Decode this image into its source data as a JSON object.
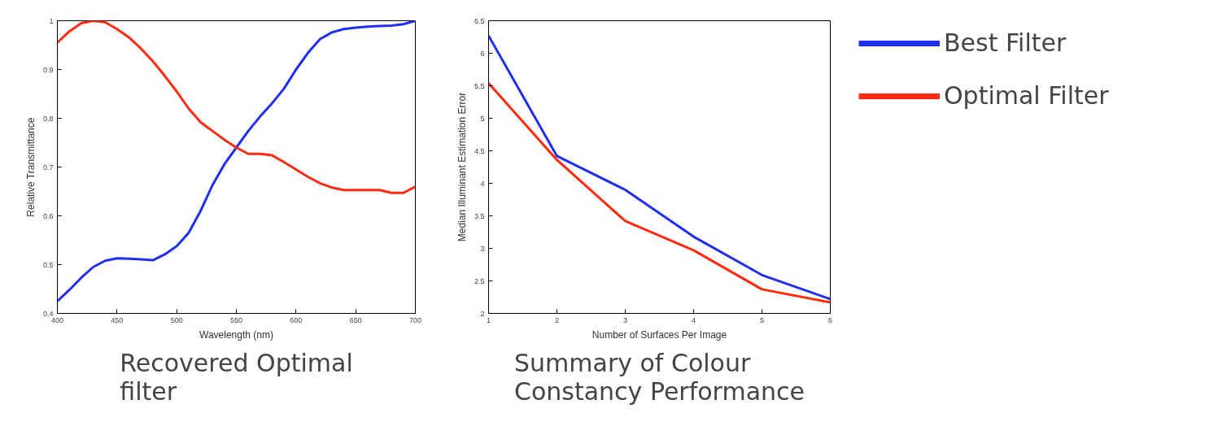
{
  "chart_data": [
    {
      "type": "line",
      "title": "Recovered Optimal filter",
      "xlabel": "Wavelength (nm)",
      "ylabel": "Relative Transmittance",
      "x": [
        400,
        410,
        420,
        430,
        440,
        450,
        460,
        470,
        480,
        490,
        500,
        510,
        520,
        530,
        540,
        550,
        560,
        570,
        580,
        590,
        600,
        610,
        620,
        630,
        640,
        650,
        660,
        670,
        680,
        690,
        700
      ],
      "series": [
        {
          "color": "#1f2ff0",
          "values": [
            0.425,
            0.448,
            0.473,
            0.495,
            0.508,
            0.513,
            0.512,
            0.511,
            0.509,
            0.521,
            0.538,
            0.565,
            0.61,
            0.663,
            0.706,
            0.74,
            0.774,
            0.804,
            0.831,
            0.861,
            0.9,
            0.934,
            0.962,
            0.976,
            0.983,
            0.986,
            0.988,
            0.989,
            0.99,
            0.993,
            1.0
          ]
        },
        {
          "color": "#ff2a10",
          "values": [
            0.955,
            0.978,
            0.995,
            1.0,
            0.997,
            0.983,
            0.966,
            0.943,
            0.917,
            0.887,
            0.855,
            0.82,
            0.792,
            0.774,
            0.756,
            0.74,
            0.727,
            0.727,
            0.724,
            0.71,
            0.695,
            0.68,
            0.667,
            0.658,
            0.653,
            0.653,
            0.653,
            0.653,
            0.647,
            0.647,
            0.66
          ]
        }
      ],
      "xlim": [
        400,
        700
      ],
      "xticks": [
        400,
        450,
        500,
        550,
        600,
        650,
        700
      ],
      "ylim": [
        0.4,
        1
      ],
      "yticks": [
        0.4,
        0.5,
        0.6,
        0.7,
        0.8,
        0.9,
        1
      ],
      "grid": false
    },
    {
      "type": "line",
      "title": "Summary of Colour Constancy Performance",
      "xlabel": "Number of Surfaces Per Image",
      "ylabel": "Median Illuminant Estimation Error",
      "x": [
        1,
        2,
        3,
        4,
        5,
        6
      ],
      "series": [
        {
          "name": "Best Filter",
          "color": "#1f2ff0",
          "values": [
            6.27,
            4.42,
            3.9,
            3.18,
            2.59,
            2.22
          ]
        },
        {
          "name": "Optimal Filter",
          "color": "#ff2a10",
          "values": [
            5.54,
            4.36,
            3.42,
            2.97,
            2.37,
            2.17
          ]
        }
      ],
      "xlim": [
        1,
        6
      ],
      "xticks": [
        1,
        2,
        3,
        4,
        5,
        6
      ],
      "ylim": [
        2,
        6.5
      ],
      "yticks": [
        2,
        2.5,
        3,
        3.5,
        4,
        4.5,
        5,
        5.5,
        6,
        6.5
      ],
      "grid": false,
      "legend": "right"
    }
  ]
}
